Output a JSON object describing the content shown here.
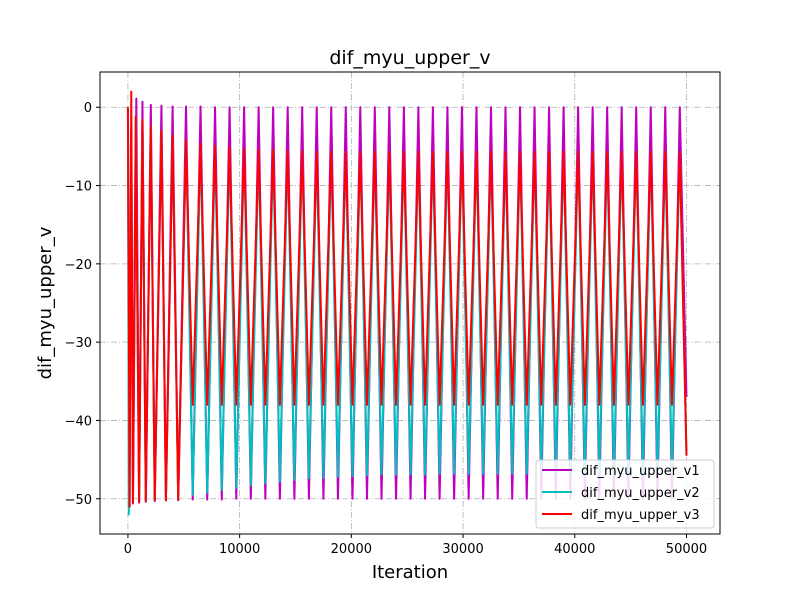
{
  "chart_data": {
    "type": "line",
    "title": "dif_myu_upper_v",
    "xlabel": "Iteration",
    "ylabel": "dif_myu_upper_v",
    "xlim": [
      -2500,
      53000
    ],
    "ylim": [
      -54.5,
      4.5
    ],
    "xticks": [
      0,
      10000,
      20000,
      30000,
      40000,
      50000
    ],
    "yticks": [
      0,
      -10,
      -20,
      -30,
      -40,
      -50
    ],
    "xtick_labels": [
      "0",
      "10000",
      "20000",
      "30000",
      "40000",
      "50000"
    ],
    "ytick_labels": [
      "0",
      "−10",
      "−20",
      "−30",
      "−40",
      "−50"
    ],
    "grid": true,
    "legend_position": "lower-right",
    "series": [
      {
        "name": "dif_myu_upper_v1",
        "color": "#bf00bf",
        "points": [
          [
            0,
            0
          ],
          [
            150,
            -51
          ],
          [
            300,
            -3
          ],
          [
            450,
            -50.6
          ],
          [
            750,
            1.1
          ],
          [
            1000,
            -50.5
          ],
          [
            1300,
            0.7
          ],
          [
            1600,
            -50.4
          ],
          [
            2050,
            0.3
          ],
          [
            2400,
            -50.3
          ],
          [
            3000,
            0.2
          ],
          [
            3400,
            -50.2
          ],
          [
            4000,
            0.1
          ],
          [
            4500,
            -50.2
          ],
          [
            5200,
            0.1
          ],
          [
            5800,
            -50.1
          ],
          [
            6500,
            0.1
          ],
          [
            7100,
            -50.1
          ],
          [
            7800,
            0
          ],
          [
            8400,
            -50.1
          ],
          [
            9100,
            0
          ],
          [
            9700,
            -50
          ],
          [
            10400,
            0
          ],
          [
            11000,
            -50
          ],
          [
            11700,
            0
          ],
          [
            12300,
            -50
          ],
          [
            13000,
            0
          ],
          [
            13600,
            -50
          ],
          [
            14300,
            0
          ],
          [
            14900,
            -50
          ],
          [
            15600,
            0
          ],
          [
            16200,
            -50
          ],
          [
            16900,
            0
          ],
          [
            17500,
            -50
          ],
          [
            18200,
            0
          ],
          [
            18800,
            -50
          ],
          [
            19500,
            0
          ],
          [
            20100,
            -50
          ],
          [
            20800,
            0
          ],
          [
            21400,
            -50
          ],
          [
            22100,
            0
          ],
          [
            22700,
            -50
          ],
          [
            23400,
            0
          ],
          [
            24000,
            -50
          ],
          [
            24700,
            0
          ],
          [
            25300,
            -50
          ],
          [
            26000,
            0
          ],
          [
            26600,
            -50
          ],
          [
            27300,
            0
          ],
          [
            27900,
            -50
          ],
          [
            28600,
            0
          ],
          [
            29200,
            -50
          ],
          [
            29900,
            0
          ],
          [
            30500,
            -50
          ],
          [
            31200,
            0
          ],
          [
            31800,
            -50
          ],
          [
            32500,
            0
          ],
          [
            33100,
            -50
          ],
          [
            33800,
            0
          ],
          [
            34400,
            -50
          ],
          [
            35100,
            0
          ],
          [
            35700,
            -50
          ],
          [
            36400,
            0
          ],
          [
            37000,
            -50
          ],
          [
            37700,
            0
          ],
          [
            38300,
            -50
          ],
          [
            39000,
            0
          ],
          [
            39600,
            -50
          ],
          [
            40300,
            0
          ],
          [
            40900,
            -50
          ],
          [
            41600,
            0
          ],
          [
            42200,
            -50
          ],
          [
            42900,
            0
          ],
          [
            43500,
            -50
          ],
          [
            44200,
            0
          ],
          [
            44800,
            -50
          ],
          [
            45500,
            0
          ],
          [
            46100,
            -50
          ],
          [
            46800,
            0
          ],
          [
            47400,
            -50
          ],
          [
            48100,
            0
          ],
          [
            48700,
            -50
          ],
          [
            49400,
            0
          ],
          [
            50000,
            -37
          ]
        ]
      },
      {
        "name": "dif_myu_upper_v2",
        "color": "#00bfbf",
        "points": [
          [
            0,
            0
          ],
          [
            80,
            -52
          ],
          [
            300,
            -3
          ],
          [
            450,
            -50.4
          ],
          [
            700,
            -1.2
          ],
          [
            1000,
            -50.4
          ],
          [
            1300,
            -1.6
          ],
          [
            1600,
            -50.3
          ],
          [
            2050,
            -2.5
          ],
          [
            2400,
            -50.2
          ],
          [
            3000,
            -3
          ],
          [
            3400,
            -50.2
          ],
          [
            4000,
            -3.6
          ],
          [
            4500,
            -50.1
          ],
          [
            5200,
            -4.2
          ],
          [
            5800,
            -49.5
          ],
          [
            6500,
            -4.6
          ],
          [
            7100,
            -49.2
          ],
          [
            7800,
            -4.9
          ],
          [
            8400,
            -48.9
          ],
          [
            9100,
            -5.1
          ],
          [
            9700,
            -48.6
          ],
          [
            10400,
            -5.3
          ],
          [
            11000,
            -48.3
          ],
          [
            11700,
            -5.4
          ],
          [
            12300,
            -48
          ],
          [
            13000,
            -5.5
          ],
          [
            13600,
            -47.8
          ],
          [
            14300,
            -5.6
          ],
          [
            14900,
            -47.6
          ],
          [
            15600,
            -5.6
          ],
          [
            16200,
            -47.4
          ],
          [
            16900,
            -5.7
          ],
          [
            17500,
            -47.3
          ],
          [
            18200,
            -5.7
          ],
          [
            18800,
            -47.2
          ],
          [
            19500,
            -5.7
          ],
          [
            20100,
            -47.1
          ],
          [
            20800,
            -5.7
          ],
          [
            21400,
            -47
          ],
          [
            22100,
            -5.7
          ],
          [
            22700,
            -46.9
          ],
          [
            23400,
            -5.7
          ],
          [
            24000,
            -46.9
          ],
          [
            24700,
            -5.7
          ],
          [
            25300,
            -46.9
          ],
          [
            26000,
            -5.7
          ],
          [
            26600,
            -46.9
          ],
          [
            27300,
            -5.7
          ],
          [
            27900,
            -46.8
          ],
          [
            28600,
            -5.7
          ],
          [
            29200,
            -46.8
          ],
          [
            29900,
            -5.7
          ],
          [
            30500,
            -46.8
          ],
          [
            31200,
            -5.7
          ],
          [
            31800,
            -46.8
          ],
          [
            32500,
            -5.7
          ],
          [
            33100,
            -46.8
          ],
          [
            33800,
            -5.7
          ],
          [
            34400,
            -46.8
          ],
          [
            35100,
            -5.7
          ],
          [
            35700,
            -46.8
          ],
          [
            36400,
            -5.7
          ],
          [
            37000,
            -46.8
          ],
          [
            37700,
            -5.7
          ],
          [
            38300,
            -46.8
          ],
          [
            39000,
            -5.7
          ],
          [
            39600,
            -46.8
          ],
          [
            40300,
            -5.7
          ],
          [
            40900,
            -46.8
          ],
          [
            41600,
            -5.7
          ],
          [
            42200,
            -46.8
          ],
          [
            42900,
            -5.7
          ],
          [
            43500,
            -46.8
          ],
          [
            44200,
            -5.7
          ],
          [
            44800,
            -46.8
          ],
          [
            45500,
            -5.7
          ],
          [
            46100,
            -46.8
          ],
          [
            46800,
            -5.7
          ],
          [
            47400,
            -46.8
          ],
          [
            48100,
            -5.7
          ],
          [
            48700,
            -46.8
          ],
          [
            49400,
            -5.7
          ],
          [
            50000,
            -44.5
          ]
        ]
      },
      {
        "name": "dif_myu_upper_v3",
        "color": "#ff0000",
        "points": [
          [
            0,
            0
          ],
          [
            150,
            -51
          ],
          [
            300,
            2
          ],
          [
            450,
            -50.5
          ],
          [
            700,
            -1.2
          ],
          [
            1000,
            -50.4
          ],
          [
            1300,
            -1.6
          ],
          [
            1600,
            -50.3
          ],
          [
            2050,
            -2.5
          ],
          [
            2400,
            -50.2
          ],
          [
            3000,
            -3
          ],
          [
            3400,
            -50.2
          ],
          [
            4000,
            -3.6
          ],
          [
            4500,
            -50.1
          ],
          [
            5200,
            -4.2
          ],
          [
            5800,
            -38
          ],
          [
            6500,
            -4.6
          ],
          [
            7100,
            -38
          ],
          [
            7800,
            -4.9
          ],
          [
            8400,
            -38
          ],
          [
            9100,
            -5.1
          ],
          [
            9700,
            -38
          ],
          [
            10400,
            -5.3
          ],
          [
            11000,
            -38
          ],
          [
            11700,
            -5.4
          ],
          [
            12300,
            -38
          ],
          [
            13000,
            -5.5
          ],
          [
            13600,
            -38
          ],
          [
            14300,
            -5.6
          ],
          [
            14900,
            -38
          ],
          [
            15600,
            -5.6
          ],
          [
            16200,
            -38
          ],
          [
            16900,
            -5.7
          ],
          [
            17500,
            -38
          ],
          [
            18200,
            -5.7
          ],
          [
            18800,
            -38
          ],
          [
            19500,
            -5.7
          ],
          [
            20100,
            -38
          ],
          [
            20800,
            -5.7
          ],
          [
            21400,
            -38
          ],
          [
            22100,
            -5.7
          ],
          [
            22700,
            -38
          ],
          [
            23400,
            -5.7
          ],
          [
            24000,
            -38
          ],
          [
            24700,
            -5.7
          ],
          [
            25300,
            -38
          ],
          [
            26000,
            -5.7
          ],
          [
            26600,
            -38
          ],
          [
            27300,
            -5.7
          ],
          [
            27900,
            -38
          ],
          [
            28600,
            -5.7
          ],
          [
            29200,
            -38
          ],
          [
            29900,
            -5.7
          ],
          [
            30500,
            -38
          ],
          [
            31200,
            -5.7
          ],
          [
            31800,
            -38
          ],
          [
            32500,
            -5.7
          ],
          [
            33100,
            -38
          ],
          [
            33800,
            -5.7
          ],
          [
            34400,
            -38
          ],
          [
            35100,
            -5.7
          ],
          [
            35700,
            -38
          ],
          [
            36400,
            -5.7
          ],
          [
            37000,
            -38
          ],
          [
            37700,
            -5.7
          ],
          [
            38300,
            -38
          ],
          [
            39000,
            -5.7
          ],
          [
            39600,
            -38
          ],
          [
            40300,
            -5.7
          ],
          [
            40900,
            -38
          ],
          [
            41600,
            -5.7
          ],
          [
            42200,
            -38
          ],
          [
            42900,
            -5.7
          ],
          [
            43500,
            -38
          ],
          [
            44200,
            -5.7
          ],
          [
            44800,
            -38
          ],
          [
            45500,
            -5.7
          ],
          [
            46100,
            -38
          ],
          [
            46800,
            -5.7
          ],
          [
            47400,
            -38
          ],
          [
            48100,
            -5.7
          ],
          [
            48700,
            -38
          ],
          [
            49400,
            -5.7
          ],
          [
            50000,
            -44.5
          ]
        ]
      }
    ]
  }
}
